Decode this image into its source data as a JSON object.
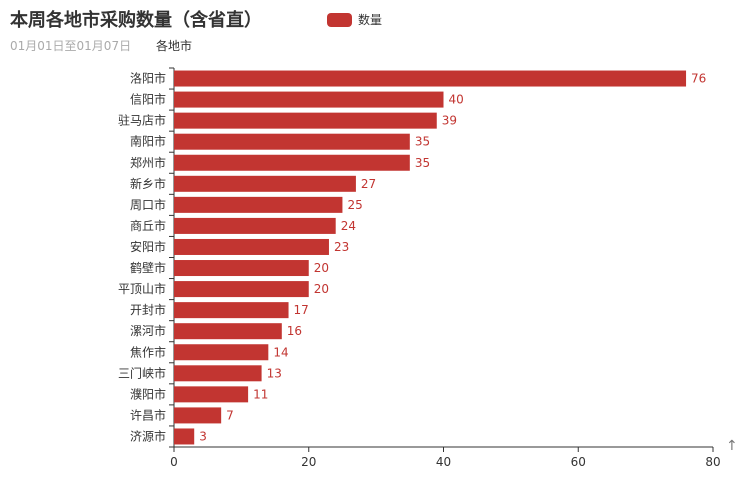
{
  "title": "本周各地市采购数量（含省直）",
  "subtitle": "01月01日至01月07日",
  "legend_label": "数量",
  "scroll_icon": "arrow-up-icon",
  "scroll_glyph": "↑",
  "colors": {
    "bar": "#c23531",
    "axis": "#333333",
    "text": "#333333"
  },
  "chart_data": {
    "type": "bar",
    "orientation": "horizontal",
    "ylabel": "各地市",
    "categories": [
      "洛阳市",
      "信阳市",
      "驻马店市",
      "南阳市",
      "郑州市",
      "新乡市",
      "周口市",
      "商丘市",
      "安阳市",
      "鹤壁市",
      "平顶山市",
      "开封市",
      "漯河市",
      "焦作市",
      "三门峡市",
      "濮阳市",
      "许昌市",
      "济源市"
    ],
    "series": [
      {
        "name": "数量",
        "values": [
          76,
          40,
          39,
          35,
          35,
          27,
          25,
          24,
          23,
          20,
          20,
          17,
          16,
          14,
          13,
          11,
          7,
          3
        ]
      }
    ],
    "xlim": [
      0,
      80
    ],
    "xticks": [
      0,
      20,
      40,
      60,
      80
    ],
    "grid": false,
    "legend_position": "top",
    "data_labels": true
  }
}
